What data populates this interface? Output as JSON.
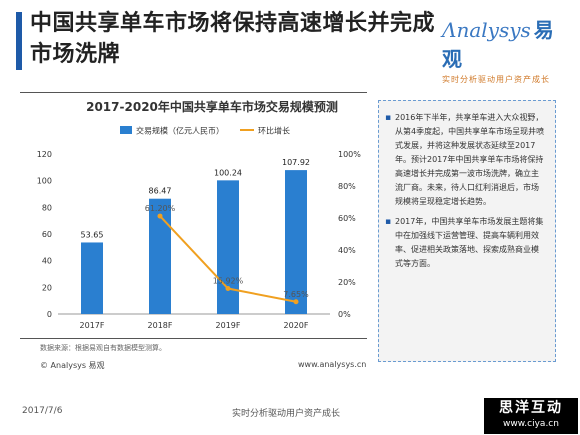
{
  "header": {
    "title": "中国共享单车市场将保持高速增长并完成市场洗牌",
    "logo_text": "nalysys",
    "logo_cn": "易观",
    "logo_tagline": "实时分析驱动用户资产成长"
  },
  "chart_data": {
    "type": "bar",
    "title": "2017-2020年中国共享单车市场交易规模预测",
    "categories": [
      "2017F",
      "2018F",
      "2019F",
      "2020F"
    ],
    "series": [
      {
        "name": "交易规模（亿元人民币）",
        "type": "bar",
        "axis": "left",
        "color": "#2a7fd0",
        "values": [
          53.65,
          86.47,
          100.24,
          107.92
        ],
        "labels": [
          "53.65",
          "86.47",
          "100.24",
          "107.92"
        ]
      },
      {
        "name": "环比增长",
        "type": "line",
        "axis": "right",
        "color": "#f0a020",
        "values": [
          null,
          61.2,
          15.92,
          7.65
        ],
        "labels": [
          "",
          "61.20%",
          "15.92%",
          "7.65%"
        ]
      }
    ],
    "y_left": {
      "min": 0,
      "max": 120,
      "ticks": [
        "0",
        "20",
        "40",
        "60",
        "80",
        "100",
        "120"
      ]
    },
    "y_right": {
      "min": 0,
      "max": 100,
      "ticks": [
        "0%",
        "20%",
        "40%",
        "60%",
        "80%",
        "100%"
      ]
    },
    "legend_position": "top",
    "grid": false
  },
  "source_note": "数据来源：根据易观自有数据模型测算。",
  "copyright": "© Analysys 易观",
  "url": "www.analysys.cn",
  "side_panel": {
    "items": [
      "2016年下半年，共享单车进入大众视野，从第4季度起，中国共享单车市场呈现井喷式发展，并将这种发展状态延续至2017年。预计2017年中国共享单车市场将保持高速增长并完成第一波市场洗牌，确立主流厂商。未来，待人口红利消退后，市场规模将呈现稳定增长趋势。",
      "2017年，中国共享单车市场发展主题将集中在加强线下运营管理、提高车辆利用效率、促进相关政策落地、探索成熟商业模式等方面。"
    ]
  },
  "footer": {
    "date": "2017/7/6",
    "slogan": "实时分析驱动用户资产成长",
    "badge_cn": "思洋互动",
    "badge_url": "www.ciya.cn"
  }
}
